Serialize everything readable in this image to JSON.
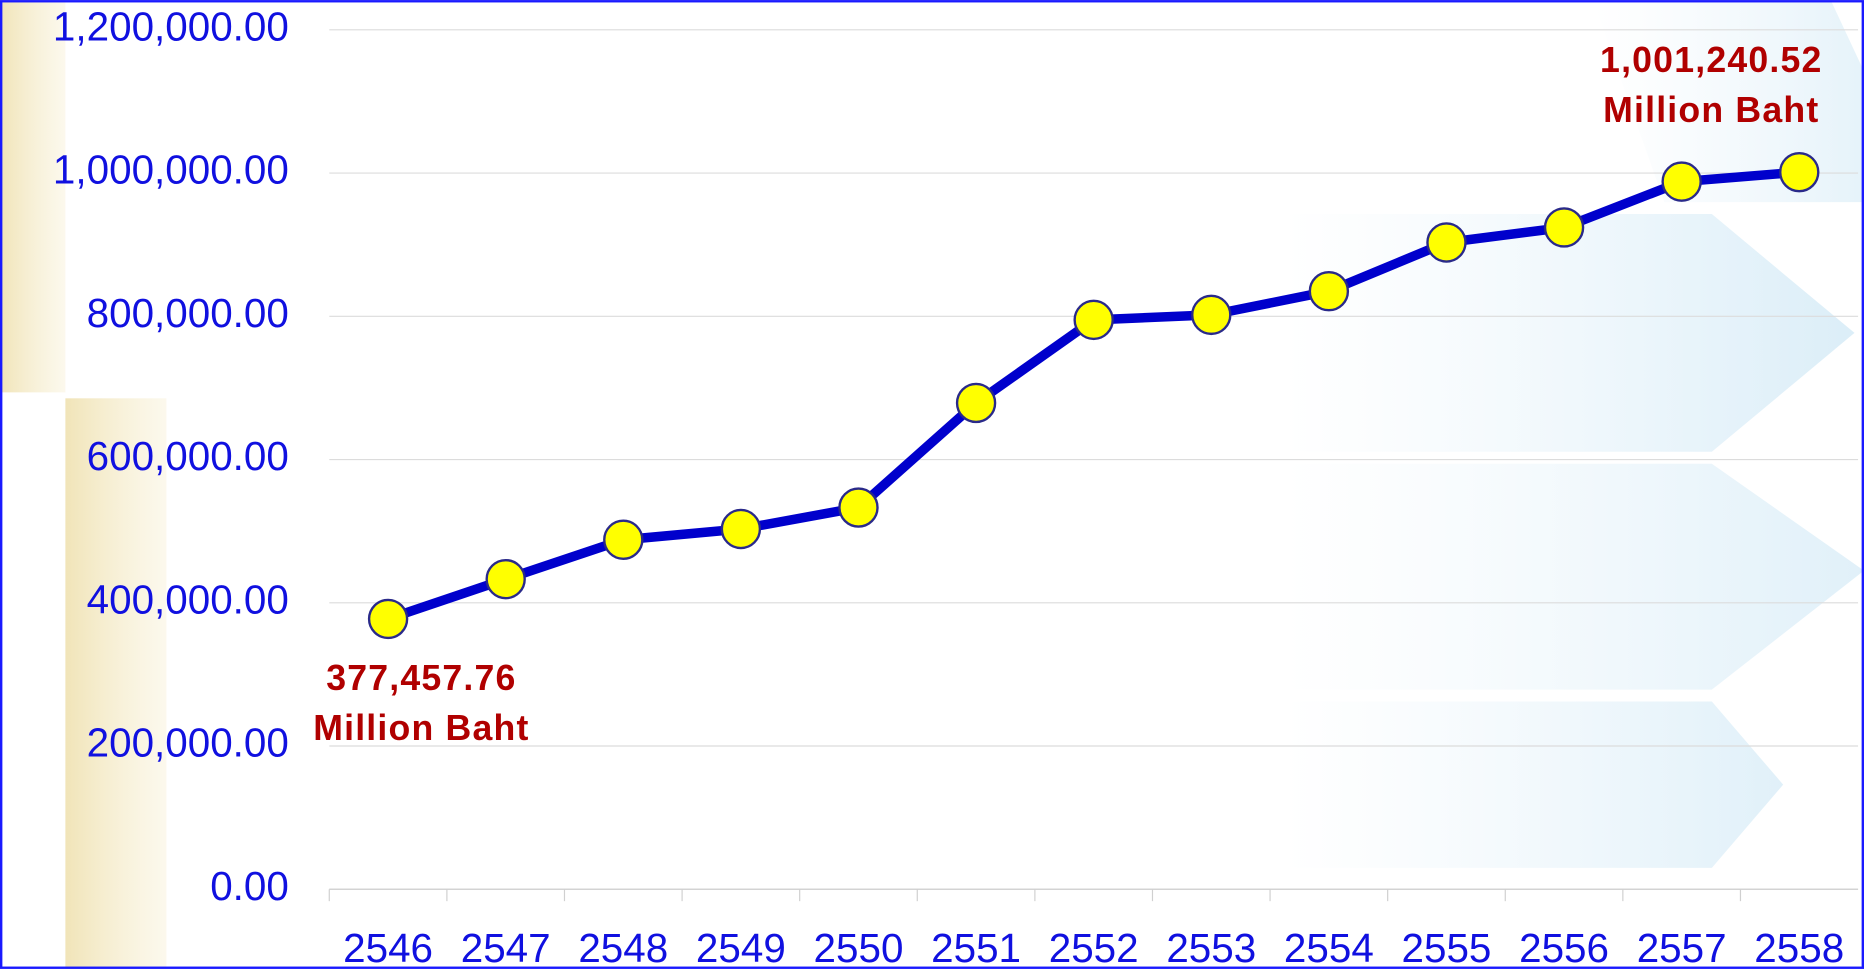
{
  "chart_data": {
    "type": "line",
    "categories": [
      "2546",
      "2547",
      "2548",
      "2549",
      "2550",
      "2551",
      "2552",
      "2553",
      "2554",
      "2555",
      "2556",
      "2557",
      "2558"
    ],
    "values": [
      377457.76,
      433000,
      488000,
      503000,
      533000,
      679000,
      795000,
      802000,
      835000,
      903000,
      924000,
      988000,
      1001240.52
    ],
    "value_labels": [
      "377,457.76",
      null,
      null,
      null,
      null,
      null,
      null,
      null,
      null,
      null,
      null,
      null,
      "1,001,240.52"
    ],
    "value_unit": "Million Baht",
    "color": "#0000cc",
    "marker_color": "#ffff00",
    "ylim": [
      0,
      1200000
    ],
    "yticks": [
      {
        "value": 0,
        "label": "0.00"
      },
      {
        "value": 200000,
        "label": "200,000.00"
      },
      {
        "value": 400000,
        "label": "400,000.00"
      },
      {
        "value": 600000,
        "label": "600,000.00"
      },
      {
        "value": 800000,
        "label": "800,000.00"
      },
      {
        "value": 1000000,
        "label": "1,000,000.00"
      },
      {
        "value": 1200000,
        "label": "1,200,000.00"
      }
    ],
    "grid": true
  }
}
